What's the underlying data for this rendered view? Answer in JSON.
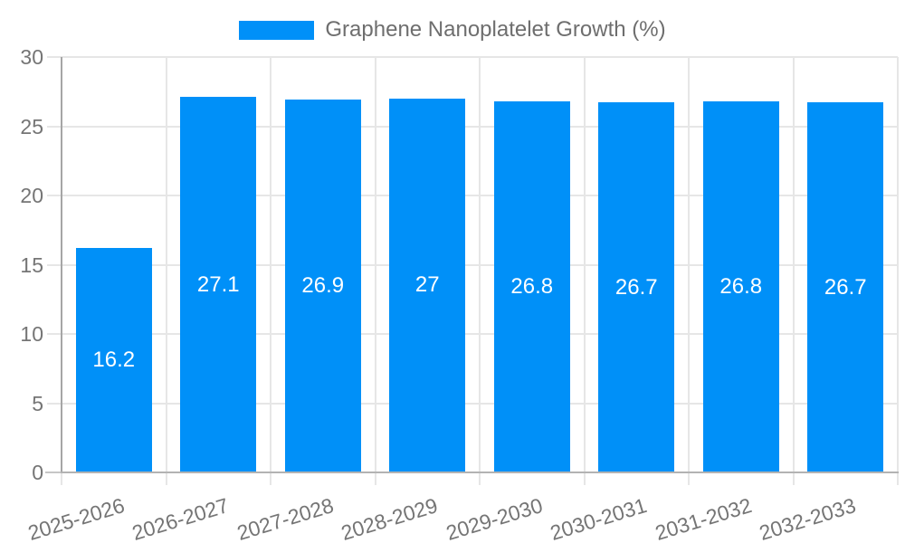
{
  "chart_data": {
    "type": "bar",
    "title": "",
    "legend": "Graphene Nanoplatelet Growth (%)",
    "legend_position": "top-center",
    "categories": [
      "2025-2026",
      "2026-2027",
      "2027-2028",
      "2028-2029",
      "2029-2030",
      "2030-2031",
      "2031-2032",
      "2032-2033"
    ],
    "values": [
      16.2,
      27.1,
      26.9,
      27,
      26.8,
      26.7,
      26.8,
      26.7
    ],
    "value_labels": [
      "16.2",
      "27.1",
      "26.9",
      "27",
      "26.8",
      "26.7",
      "26.8",
      "26.7"
    ],
    "xlabel": "",
    "ylabel": "",
    "ylim": [
      0,
      30
    ],
    "yticks": [
      0,
      5,
      10,
      15,
      20,
      25,
      30
    ],
    "ytick_labels": [
      "0",
      "5",
      "10",
      "15",
      "20",
      "25",
      "30"
    ],
    "grid": true,
    "colors": {
      "bar": "#0090f8",
      "grid": "#e6e6e6",
      "tick_stub": "#c6c6c6",
      "y_axis": "#a6a6a6",
      "x_axis": "#b3b3b3",
      "tick_text": "#757575",
      "legend_text": "#6e6e6e",
      "value_text": "#ffffff",
      "background": "#ffffff"
    }
  }
}
